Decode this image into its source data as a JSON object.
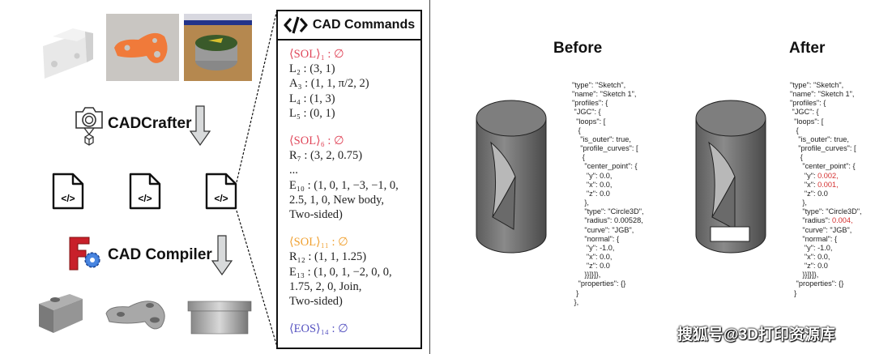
{
  "left": {
    "crafter_label": "CADCrafter",
    "compiler_label": "CAD Compiler",
    "icons": [
      "camera-icon",
      "cube-icon",
      "code-file-icon",
      "freecad-logo",
      "gear-icon",
      "down-arrow-icon"
    ]
  },
  "commands": {
    "header": "CAD Commands",
    "header_icon": "code-icon",
    "lines": [
      {
        "t": "⟨SOL⟩₁ : ∅",
        "c": "red"
      },
      {
        "t": "L₂ : (3, 1)"
      },
      {
        "t": "A₃ : (1, 1, π/2, 2)"
      },
      {
        "t": "L₄ : (1, 3)"
      },
      {
        "t": "L₅ : (0, 1)"
      },
      {
        "gap": true
      },
      {
        "t": "⟨SOL⟩₆ : ∅",
        "c": "red"
      },
      {
        "t": "R₇ : (3, 2, 0.75)"
      },
      {
        "t": "..."
      },
      {
        "t": "E₁₀ : (1, 0, 1, −3, −1, 0,"
      },
      {
        "t": "2.5, 1, 0, New body,"
      },
      {
        "t": "Two-sided)"
      },
      {
        "gap": true
      },
      {
        "t": "⟨SOL⟩₁₁ : ∅",
        "c": "org"
      },
      {
        "t": "R₁₂ : (1, 1, 1.25)"
      },
      {
        "t": "E₁₃ : (1, 0, 1, −2, 0, 0,"
      },
      {
        "t": "1.75, 2, 0, Join,"
      },
      {
        "t": "Two-sided)"
      },
      {
        "gap": true
      },
      {
        "t": "⟨EOS⟩₁₄ : ∅",
        "c": "blu"
      }
    ]
  },
  "before": {
    "title": "Before",
    "json_lines": [
      "\"type\": \"Sketch\",",
      "\"name\": \"Sketch 1\",",
      "\"profiles\": {",
      " \"JGC\": {",
      "  \"loops\": [",
      "   {",
      "    \"is_outer\": true,",
      "    \"profile_curves\": [",
      "     {",
      "      \"center_point\": {",
      "       \"y\": 0.0,",
      "       \"x\": 0.0,",
      "       \"z\": 0.0",
      "      },",
      "      \"type\": \"Circle3D\",",
      "      \"radius\": 0.00528,",
      "      \"curve\": \"JGB\",",
      "      \"normal\": {",
      "       \"y\": -1.0,",
      "       \"x\": 0.0,",
      "       \"z\": 0.0",
      "      }}]}]},",
      "   \"properties\": {}",
      "  }",
      " },"
    ]
  },
  "after": {
    "title": "After",
    "json_lines": [
      "\"type\": \"Sketch\",",
      "\"name\": \"Sketch 1\",",
      "\"profiles\": {",
      " \"JGC\": {",
      "  \"loops\": [",
      "   {",
      "    \"is_outer\": true,",
      "    \"profile_curves\": [",
      "     {",
      "      \"center_point\": {",
      "       \"y\": 0.002,",
      "       \"x\": 0.001,",
      "       \"z\": 0.0",
      "      },",
      "      \"type\": \"Circle3D\",",
      "      \"radius\": 0.004,",
      "      \"curve\": \"JGB\",",
      "      \"normal\": {",
      "       \"y\": -1.0,",
      "       \"x\": 0.0,",
      "       \"z\": 0.0",
      "      }}]}]},",
      "   \"properties\": {}",
      "  }"
    ],
    "highlight_color": "#d43030",
    "highlight_lines": [
      10,
      11,
      15
    ]
  },
  "watermark": "搜狐号@3D打印资源库"
}
